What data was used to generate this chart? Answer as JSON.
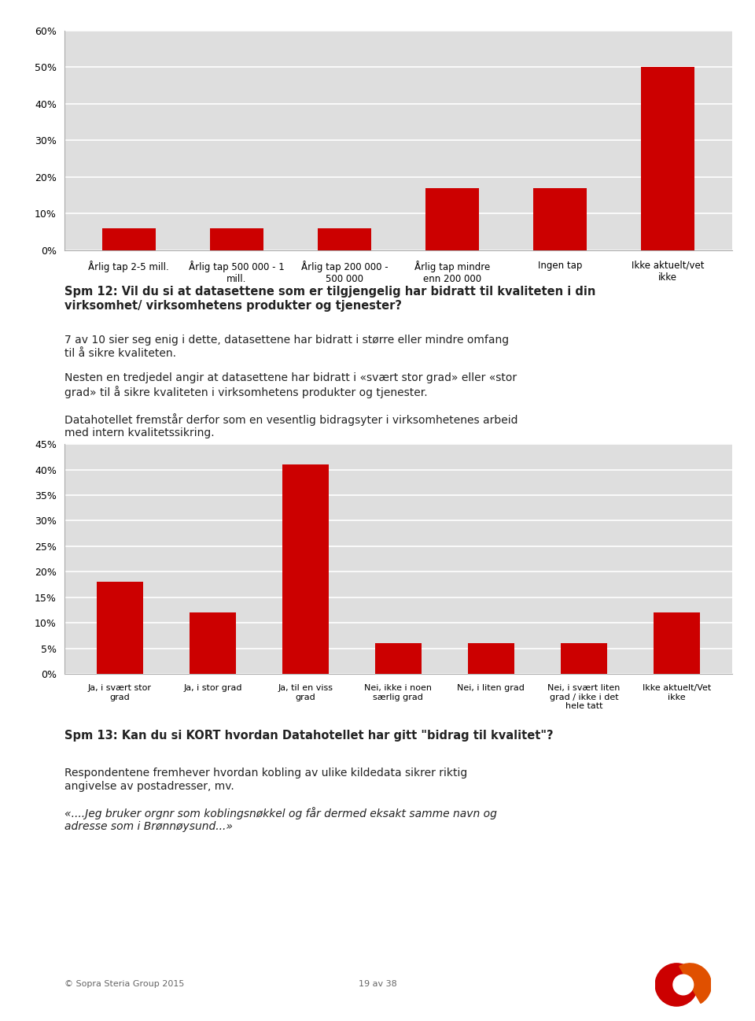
{
  "chart1": {
    "categories": [
      "Årlig tap 2-5 mill.",
      "Årlig tap 500 000 - 1\nmill.",
      "Årlig tap 200 000 -\n500 000",
      "Årlig tap mindre\nenn 200 000",
      "Ingen tap",
      "Ikke aktuelt/vet\nikke"
    ],
    "values": [
      6,
      6,
      6,
      17,
      17,
      50
    ],
    "ylim": [
      0,
      60
    ],
    "yticks": [
      0,
      10,
      20,
      30,
      40,
      50,
      60
    ],
    "ytick_labels": [
      "0%",
      "10%",
      "20%",
      "30%",
      "40%",
      "50%",
      "60%"
    ]
  },
  "chart2": {
    "categories": [
      "Ja, i svært stor\ngrad",
      "Ja, i stor grad",
      "Ja, til en viss\ngrad",
      "Nei, ikke i noen\nsærlig grad",
      "Nei, i liten grad",
      "Nei, i svært liten\ngrad / ikke i det\nhele tatt",
      "Ikke aktuelt/Vet\nikke"
    ],
    "values": [
      18,
      12,
      41,
      6,
      6,
      6,
      12
    ],
    "ylim": [
      0,
      45
    ],
    "yticks": [
      0,
      5,
      10,
      15,
      20,
      25,
      30,
      35,
      40,
      45
    ],
    "ytick_labels": [
      "0%",
      "5%",
      "10%",
      "15%",
      "20%",
      "25%",
      "30%",
      "35%",
      "40%",
      "45%"
    ]
  },
  "spm12_title_bold": "Spm 12: ",
  "spm12_title_rest": "Vil du si at datasettene som er tilgjengelig har bidratt til kvaliteten i din\nvirksomhet/ virksomhetens produkter og tjenester?",
  "spm12_body1": "7 av 10 sier seg enig i dette, datasettene har bidratt i større eller mindre omfang\ntil å sikre kvaliteten.",
  "spm12_body2": "Nesten en tredjedel angir at datasettene har bidratt i «svært stor grad» eller «stor\ngrad» til å sikre kvaliteten i virksomhetens produkter og tjenester.",
  "spm12_body3": "Datahotellet fremstår derfor som en vesentlig bidragsyter i virksomhetenes arbeid\nmed intern kvalitetssikring.",
  "spm13_title": "Spm 13: Kan du si KORT hvordan Datahotellet har gitt \"bidrag til kvalitet\"?",
  "spm13_body1": "Respondentene fremhever hvordan kobling av ulike kildedata sikrer riktig\nangivelse av postadresser, mv.",
  "spm13_italic": "«....Jeg bruker orgnr som koblingsnøkkel og får dermed eksakt samme navn og\nadresse som i Brønnøysund...»",
  "footer_left": "© Sopra Steria Group 2015",
  "footer_center": "19 av 38",
  "bg_color": "#ffffff",
  "chart_bg_color": "#dedede",
  "bar_color": "#cc0000",
  "grid_color": "#ffffff",
  "border_color": "#aaaaaa",
  "text_color": "#222222"
}
